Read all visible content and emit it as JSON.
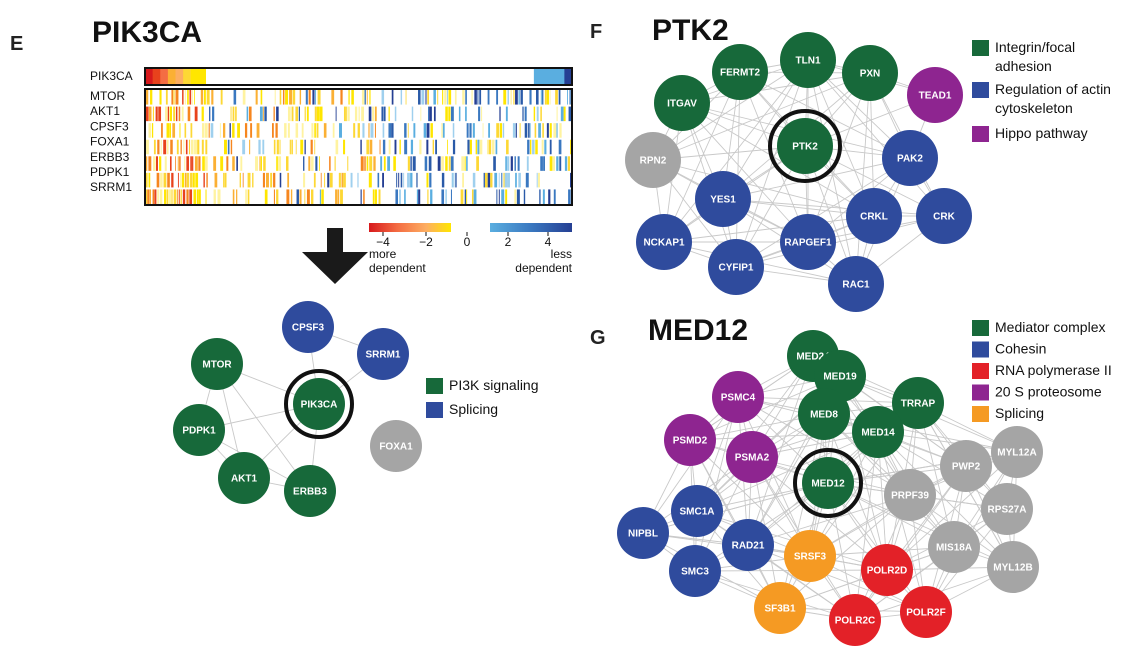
{
  "colors": {
    "green": "#17693a",
    "blue": "#2f4b9d",
    "gray": "#a5a5a5",
    "purple": "#8e2590",
    "red": "#e32128",
    "orange": "#f59a23",
    "edge": "#c9c9c9"
  },
  "panel_e": {
    "letter": "E",
    "title": "PIK3CA",
    "heatmap_target_label": "PIK3CA",
    "heatmap_rows": [
      "MTOR",
      "AKT1",
      "CPSF3",
      "FOXA1",
      "ERBB3",
      "PDPK1",
      "SRRM1"
    ],
    "scale_ticks": [
      "−4",
      "−2",
      "0",
      "2",
      "4"
    ],
    "scale_left_caption": [
      "more",
      "dependent"
    ],
    "scale_right_caption": [
      "less",
      "dependent"
    ],
    "network": {
      "nodes": [
        {
          "id": "PIK3CA",
          "label": "PIK3CA",
          "group": "green",
          "center": true
        },
        {
          "id": "CPSF3",
          "label": "CPSF3",
          "group": "blue"
        },
        {
          "id": "SRRM1",
          "label": "SRRM1",
          "group": "blue"
        },
        {
          "id": "MTOR",
          "label": "MTOR",
          "group": "green"
        },
        {
          "id": "PDPK1",
          "label": "PDPK1",
          "group": "green"
        },
        {
          "id": "AKT1",
          "label": "AKT1",
          "group": "green"
        },
        {
          "id": "ERBB3",
          "label": "ERBB3",
          "group": "green"
        },
        {
          "id": "FOXA1",
          "label": "FOXA1",
          "group": "gray"
        }
      ]
    },
    "legend": [
      {
        "label": "PI3K signaling",
        "color": "green"
      },
      {
        "label": "Splicing",
        "color": "blue"
      }
    ]
  },
  "panel_f": {
    "letter": "F",
    "title": "PTK2",
    "network": {
      "nodes": [
        {
          "id": "PTK2",
          "label": "PTK2",
          "group": "green",
          "center": true
        },
        {
          "id": "TLN1",
          "label": "TLN1",
          "group": "green"
        },
        {
          "id": "FERMT2",
          "label": "FERMT2",
          "group": "green"
        },
        {
          "id": "PXN",
          "label": "PXN",
          "group": "green"
        },
        {
          "id": "ITGAV",
          "label": "ITGAV",
          "group": "green"
        },
        {
          "id": "TEAD1",
          "label": "TEAD1",
          "group": "purple"
        },
        {
          "id": "RPN2",
          "label": "RPN2",
          "group": "gray"
        },
        {
          "id": "PAK2",
          "label": "PAK2",
          "group": "blue"
        },
        {
          "id": "YES1",
          "label": "YES1",
          "group": "blue"
        },
        {
          "id": "CRKL",
          "label": "CRKL",
          "group": "blue"
        },
        {
          "id": "CRK",
          "label": "CRK",
          "group": "blue"
        },
        {
          "id": "NCKAP1",
          "label": "NCKAP1",
          "group": "blue"
        },
        {
          "id": "RAPGEF1",
          "label": "RAPGEF1",
          "group": "blue"
        },
        {
          "id": "CYFIP1",
          "label": "CYFIP1",
          "group": "blue"
        },
        {
          "id": "RAC1",
          "label": "RAC1",
          "group": "blue"
        }
      ]
    },
    "legend": [
      {
        "label": "Integrin/focal adhesion",
        "lines": [
          "Integrin/focal",
          "adhesion"
        ],
        "color": "green"
      },
      {
        "label": "Regulation of actin cytoskeleton",
        "lines": [
          "Regulation of actin",
          "cytoskeleton"
        ],
        "color": "blue"
      },
      {
        "label": "Hippo pathway",
        "lines": [
          "Hippo pathway"
        ],
        "color": "purple"
      }
    ]
  },
  "panel_g": {
    "letter": "G",
    "title": "MED12",
    "network": {
      "nodes": [
        {
          "id": "MED12",
          "label": "MED12",
          "group": "green",
          "center": true
        },
        {
          "id": "MED24",
          "label": "MED24",
          "group": "green"
        },
        {
          "id": "MED19",
          "label": "MED19",
          "group": "green"
        },
        {
          "id": "MED8",
          "label": "MED8",
          "group": "green"
        },
        {
          "id": "TRRAP",
          "label": "TRRAP",
          "group": "green"
        },
        {
          "id": "MED14",
          "label": "MED14",
          "group": "green"
        },
        {
          "id": "PSMC4",
          "label": "PSMC4",
          "group": "purple"
        },
        {
          "id": "PSMD2",
          "label": "PSMD2",
          "group": "purple"
        },
        {
          "id": "PSMA2",
          "label": "PSMA2",
          "group": "purple"
        },
        {
          "id": "MYL12A",
          "label": "MYL12A",
          "group": "gray"
        },
        {
          "id": "PWP2",
          "label": "PWP2",
          "group": "gray"
        },
        {
          "id": "PRPF39",
          "label": "PRPF39",
          "group": "gray"
        },
        {
          "id": "RPS27A",
          "label": "RPS27A",
          "group": "gray"
        },
        {
          "id": "MIS18A",
          "label": "MIS18A",
          "group": "gray"
        },
        {
          "id": "MYL12B",
          "label": "MYL12B",
          "group": "gray"
        },
        {
          "id": "SMC1A",
          "label": "SMC1A",
          "group": "blue"
        },
        {
          "id": "NIPBL",
          "label": "NIPBL",
          "group": "blue"
        },
        {
          "id": "RAD21",
          "label": "RAD21",
          "group": "blue"
        },
        {
          "id": "SMC3",
          "label": "SMC3",
          "group": "blue"
        },
        {
          "id": "SRSF3",
          "label": "SRSF3",
          "group": "orange"
        },
        {
          "id": "SF3B1",
          "label": "SF3B1",
          "group": "orange"
        },
        {
          "id": "POLR2D",
          "label": "POLR2D",
          "group": "red"
        },
        {
          "id": "POLR2C",
          "label": "POLR2C",
          "group": "red"
        },
        {
          "id": "POLR2F",
          "label": "POLR2F",
          "group": "red"
        }
      ]
    },
    "legend": [
      {
        "label": "Mediator complex",
        "lines": [
          "Mediator complex"
        ],
        "color": "green"
      },
      {
        "label": "Cohesin",
        "lines": [
          "Cohesin"
        ],
        "color": "blue"
      },
      {
        "label": "RNA polymerase II",
        "lines": [
          "RNA polymerase II"
        ],
        "color": "red"
      },
      {
        "label": "20 S proteosome",
        "lines": [
          "20 S proteosome"
        ],
        "color": "purple"
      },
      {
        "label": "Splicing",
        "lines": [
          "Splicing"
        ],
        "color": "orange"
      }
    ]
  }
}
